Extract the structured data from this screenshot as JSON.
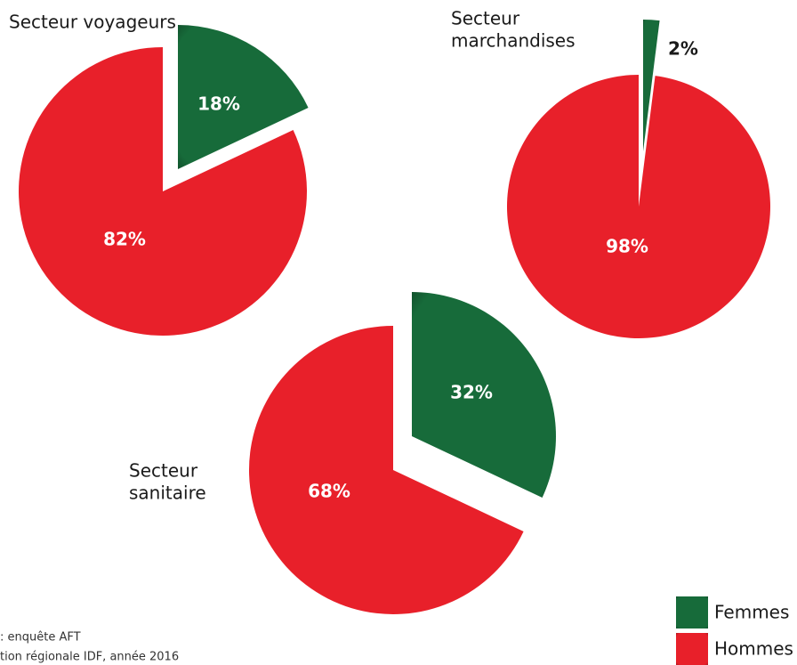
{
  "chart_data": [
    {
      "type": "pie",
      "title": [
        "Secteur voyageurs"
      ],
      "values": [
        18,
        82
      ],
      "value_labels": [
        "18%",
        "82%"
      ]
    },
    {
      "type": "pie",
      "title": [
        "Secteur",
        "marchandises"
      ],
      "values": [
        2,
        98
      ],
      "value_labels": [
        "2%",
        "98%"
      ]
    },
    {
      "type": "pie",
      "title": [
        "Secteur",
        "sanitaire"
      ],
      "values": [
        32,
        68
      ],
      "value_labels": [
        "32%",
        "68%"
      ]
    }
  ],
  "legend": [
    {
      "name": "Femmes",
      "color": "#176b3a"
    },
    {
      "name": "Hommes",
      "color": "#e8202a"
    }
  ],
  "source": [
    ": enquête AFT",
    "tion régionale IDF, année 2016"
  ]
}
